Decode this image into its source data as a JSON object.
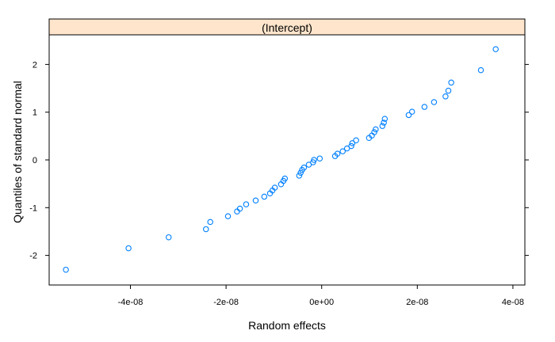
{
  "chart_data": {
    "type": "scatter",
    "strip_label": "(Intercept)",
    "xlabel": "Random effects",
    "ylabel": "Quantiles of standard normal",
    "xlim": [
      -5.7e-08,
      4.25e-08
    ],
    "ylim": [
      -2.62,
      2.62
    ],
    "x_ticks": [
      {
        "value": -4e-08,
        "label": "-4e-08"
      },
      {
        "value": -2e-08,
        "label": "-2e-08"
      },
      {
        "value": 0,
        "label": "0e+00"
      },
      {
        "value": 2e-08,
        "label": "2e-08"
      },
      {
        "value": 4e-08,
        "label": "4e-08"
      }
    ],
    "y_ticks": [
      {
        "value": -2,
        "label": "-2"
      },
      {
        "value": -1,
        "label": "-1"
      },
      {
        "value": 0,
        "label": "0"
      },
      {
        "value": 1,
        "label": "1"
      },
      {
        "value": 2,
        "label": "2"
      }
    ],
    "grid": false,
    "colors": {
      "points": "#0080ff",
      "strip": "#ffe5cc",
      "frame": "#000000"
    },
    "series": [
      {
        "values": [
          [
            -5.35e-08,
            -2.3
          ],
          [
            -4.04e-08,
            -1.85
          ],
          [
            -3.2e-08,
            -1.62
          ],
          [
            -2.42e-08,
            -1.45
          ],
          [
            -2.33e-08,
            -1.3
          ],
          [
            -1.96e-08,
            -1.18
          ],
          [
            -1.77e-08,
            -1.08
          ],
          [
            -1.71e-08,
            -1.02
          ],
          [
            -1.58e-08,
            -0.93
          ],
          [
            -1.38e-08,
            -0.85
          ],
          [
            -1.2e-08,
            -0.77
          ],
          [
            -1.08e-08,
            -0.7
          ],
          [
            -1.03e-08,
            -0.64
          ],
          [
            -9.8e-09,
            -0.58
          ],
          [
            -8.5e-09,
            -0.51
          ],
          [
            -8e-09,
            -0.44
          ],
          [
            -7.7e-09,
            -0.39
          ],
          [
            -4.7e-09,
            -0.33
          ],
          [
            -4.4e-09,
            -0.27
          ],
          [
            -4.1e-09,
            -0.21
          ],
          [
            -3.7e-09,
            -0.16
          ],
          [
            -2.7e-09,
            -0.1
          ],
          [
            -1.8e-09,
            -0.05
          ],
          [
            -1.6e-09,
            0.0
          ],
          [
            -4e-10,
            0.03
          ],
          [
            2.8e-09,
            0.08
          ],
          [
            3.3e-09,
            0.13
          ],
          [
            4.4e-09,
            0.18
          ],
          [
            5.3e-09,
            0.24
          ],
          [
            6.2e-09,
            0.29
          ],
          [
            6.4e-09,
            0.35
          ],
          [
            7.2e-09,
            0.41
          ],
          [
            9.9e-09,
            0.46
          ],
          [
            1.05e-08,
            0.51
          ],
          [
            1.1e-08,
            0.58
          ],
          [
            1.13e-08,
            0.64
          ],
          [
            1.27e-08,
            0.71
          ],
          [
            1.3e-08,
            0.78
          ],
          [
            1.32e-08,
            0.86
          ],
          [
            1.82e-08,
            0.94
          ],
          [
            1.89e-08,
            1.01
          ],
          [
            2.15e-08,
            1.11
          ],
          [
            2.35e-08,
            1.21
          ],
          [
            2.59e-08,
            1.33
          ],
          [
            2.65e-08,
            1.45
          ],
          [
            2.71e-08,
            1.62
          ],
          [
            3.33e-08,
            1.88
          ],
          [
            3.64e-08,
            2.32
          ]
        ]
      }
    ]
  }
}
